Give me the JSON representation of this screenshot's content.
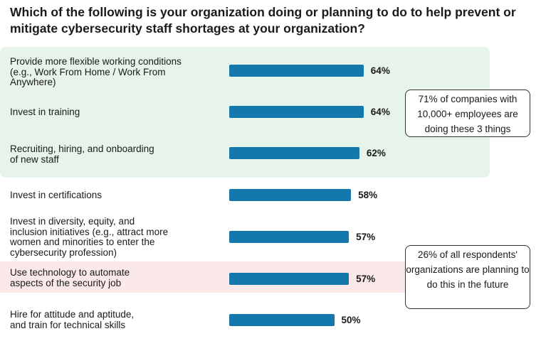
{
  "title": "Which of the following is your organization doing or planning to do to help prevent or mitigate cybersecurity staff shortages at your organization?",
  "callouts": {
    "top": "71% of companies with 10,000+ employees are doing these 3 things",
    "bottom": "26% of all respondents' organizations are planning to do this in the future"
  },
  "colors": {
    "bar": "#1478ad",
    "highlight_green": "#e6f4e9",
    "highlight_pink": "#fbe9ea"
  },
  "chart_data": {
    "type": "bar",
    "orientation": "horizontal",
    "title": "Which of the following is your organization doing or planning to do to help prevent or mitigate cybersecurity staff shortages at your organization?",
    "categories": [
      "Provide more flexible working conditions (e.g., Work From Home / Work From Anywhere)",
      "Invest in training",
      "Recruiting, hiring, and onboarding of new staff",
      "Invest in certifications",
      "Invest in diversity, equity, and inclusion initiatives (e.g., attract more women and minorities to enter the cybersecurity profession)",
      "Use technology to automate aspects of the security job",
      "Hire for attitude and aptitude, and train for technical skills"
    ],
    "values": [
      64,
      64,
      62,
      58,
      57,
      57,
      50
    ],
    "value_labels": [
      "64%",
      "64%",
      "62%",
      "58%",
      "57%",
      "57%",
      "50%"
    ],
    "xlim": [
      0,
      100
    ],
    "grid": false,
    "legend": "none"
  }
}
